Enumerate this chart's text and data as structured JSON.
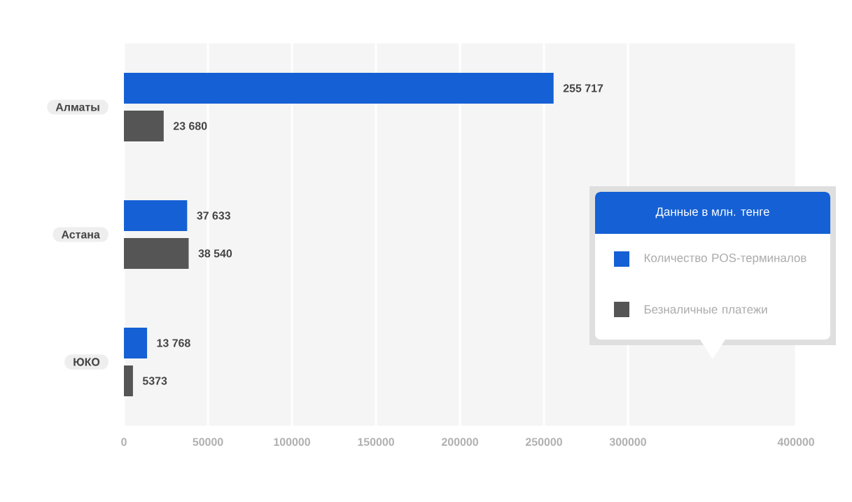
{
  "chart_data": {
    "type": "bar",
    "orientation": "horizontal",
    "legend_title": "Данные в млн. тенге",
    "categories": [
      "Алматы",
      "Астана",
      "ЮКО"
    ],
    "series": [
      {
        "name": "Количество POS-терминалов",
        "color": "#1560d4",
        "values": [
          255717,
          37633,
          13768
        ],
        "value_labels": [
          "255 717",
          "37 633",
          "13 768"
        ]
      },
      {
        "name": "Безналичные платежи",
        "color": "#555555",
        "values": [
          23680,
          38540,
          5373
        ],
        "value_labels": [
          "23 680",
          "38 540",
          "5373"
        ]
      }
    ],
    "xlim": [
      0,
      400000
    ],
    "xticks": [
      0,
      50000,
      100000,
      150000,
      200000,
      250000,
      300000,
      400000
    ],
    "grid": "x",
    "legend": "right"
  }
}
